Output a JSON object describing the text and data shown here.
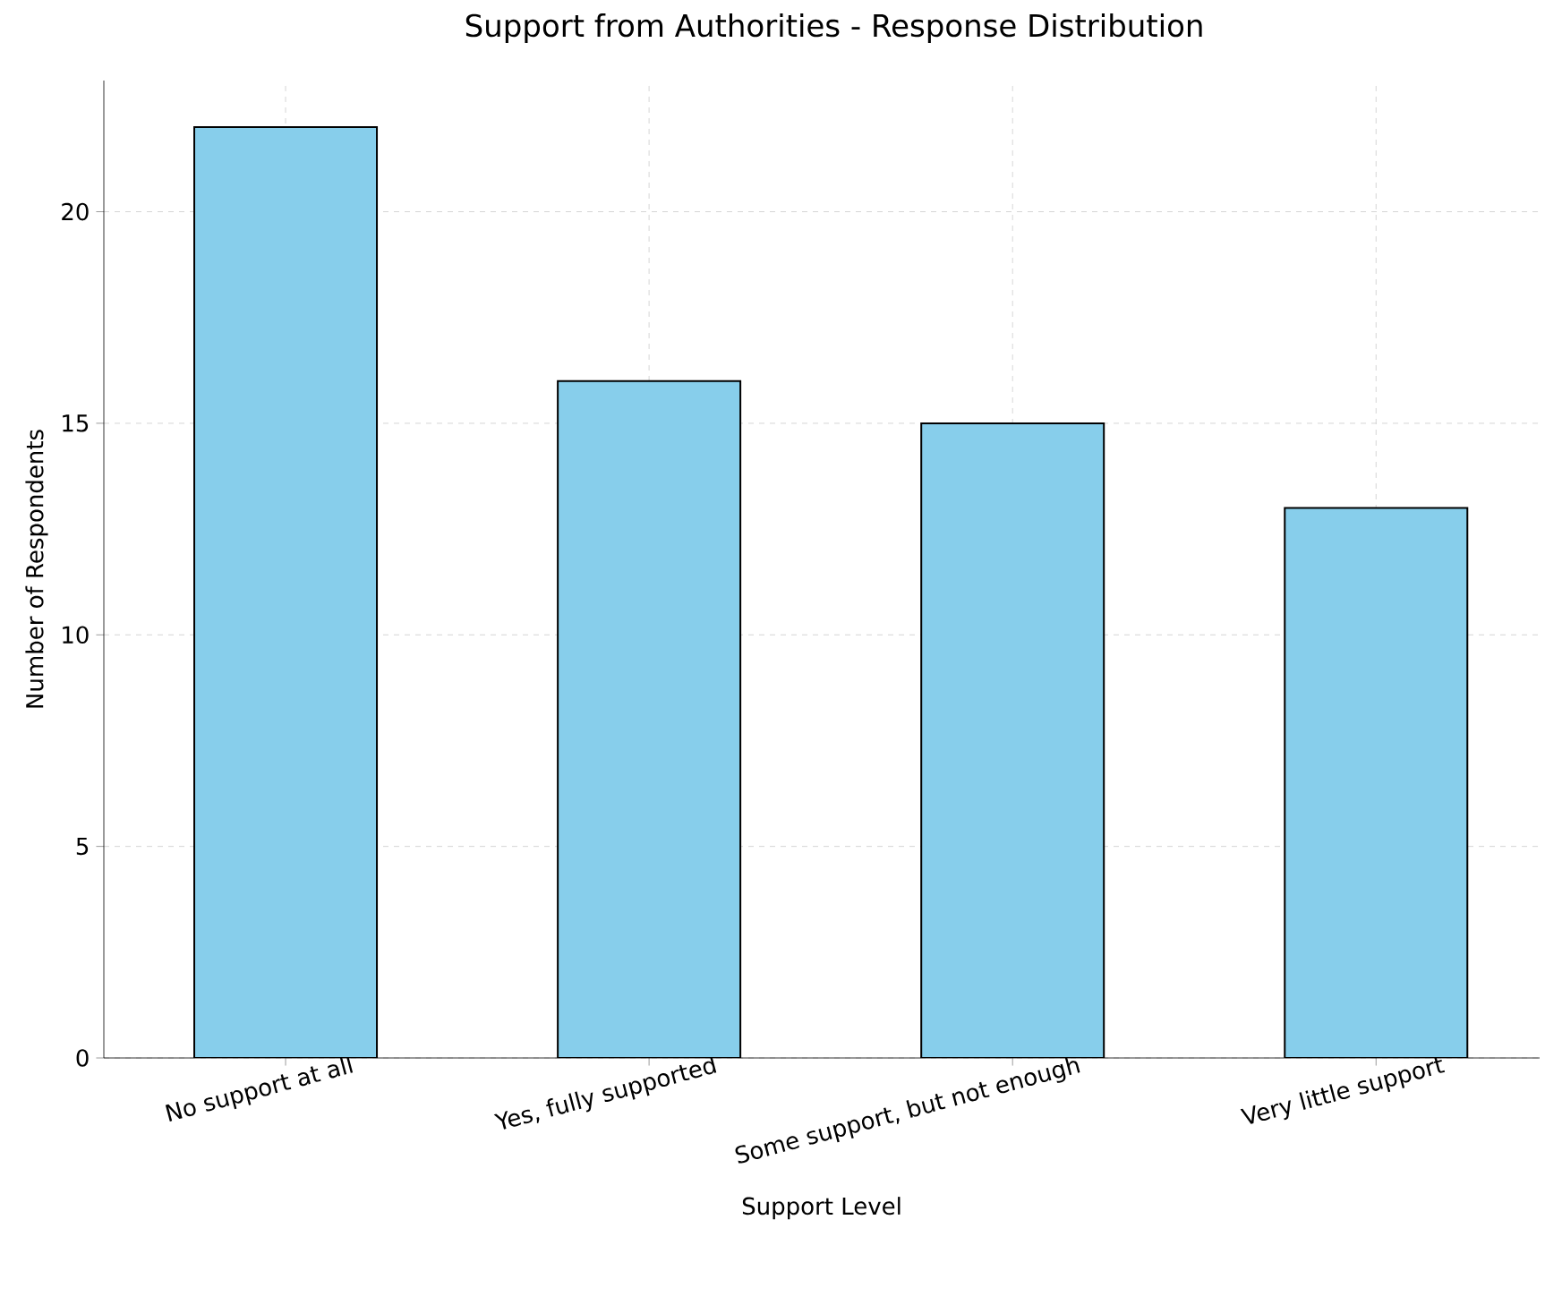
{
  "chart_data": {
    "type": "bar",
    "title": "Support from Authorities - Response Distribution",
    "xlabel": "Support Level",
    "ylabel": "Number of Respondents",
    "categories": [
      "No support at all",
      "Yes, fully supported",
      "Some support, but not enough",
      "Very little support"
    ],
    "values": [
      22,
      16,
      15,
      13
    ],
    "color": "#87ceeb",
    "ylim": [
      0,
      23.1
    ],
    "yticks": [
      0,
      5,
      10,
      15,
      20
    ],
    "grid": true
  }
}
